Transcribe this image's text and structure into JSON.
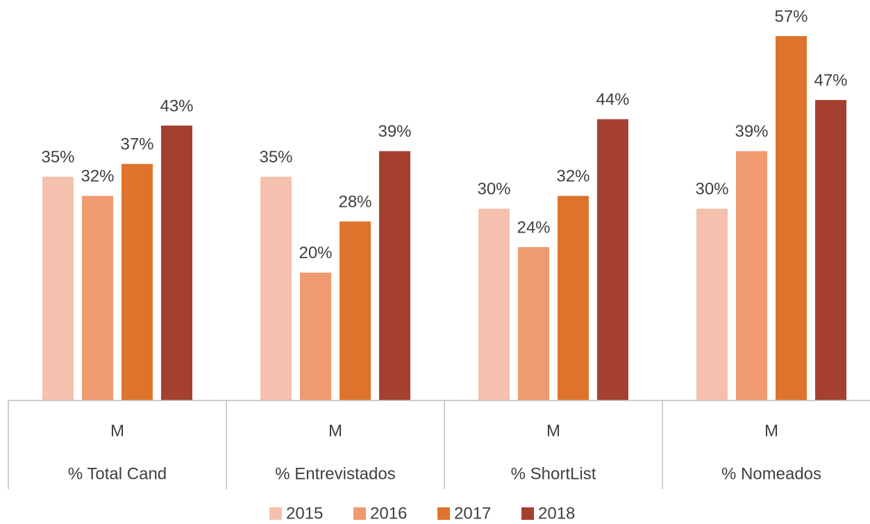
{
  "chart_data": {
    "type": "bar",
    "categories": [
      "% Total Cand",
      "% Entrevistados",
      "% ShortList",
      "% Nomeados"
    ],
    "category_sublabels": [
      "M",
      "M",
      "M",
      "M"
    ],
    "series": [
      {
        "name": "2015",
        "color": "#f5c0ae",
        "values": [
          35,
          35,
          30,
          30
        ],
        "value_labels": [
          "35%",
          "35%",
          "30%",
          "30%"
        ]
      },
      {
        "name": "2016",
        "color": "#f09a70",
        "values": [
          32,
          20,
          24,
          39
        ],
        "value_labels": [
          "32%",
          "20%",
          "24%",
          "39%"
        ]
      },
      {
        "name": "2017",
        "color": "#de742c",
        "values": [
          37,
          28,
          32,
          57
        ],
        "value_labels": [
          "37%",
          "28%",
          "32%",
          "57%"
        ]
      },
      {
        "name": "2018",
        "color": "#a54030",
        "values": [
          43,
          39,
          44,
          47
        ],
        "value_labels": [
          "43%",
          "39%",
          "44%",
          "47%"
        ]
      }
    ],
    "legend": "bottom"
  }
}
